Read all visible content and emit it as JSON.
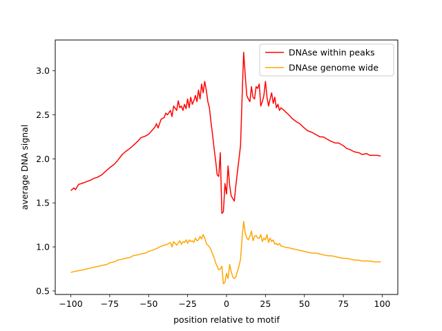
{
  "chart_data": {
    "type": "line",
    "title": "",
    "xlabel": "position relative to motif",
    "ylabel": "average DNA signal",
    "xlim": [
      -110,
      110
    ],
    "ylim": [
      0.46,
      3.35
    ],
    "xticks": [
      -100,
      -75,
      -50,
      -25,
      0,
      25,
      50,
      75,
      100
    ],
    "xtick_labels": [
      "−100",
      "−75",
      "−50",
      "−25",
      "0",
      "25",
      "50",
      "75",
      "100"
    ],
    "yticks": [
      0.5,
      1.0,
      1.5,
      2.0,
      2.5,
      3.0
    ],
    "ytick_labels": [
      "0.5",
      "1.0",
      "1.5",
      "2.0",
      "2.5",
      "3.0"
    ],
    "grid": false,
    "legend": {
      "position": "top-right"
    },
    "series": [
      {
        "name": "DNAse within peaks",
        "color": "#ff0000",
        "x": [
          -100,
          -98,
          -97,
          -95,
          -93,
          -90,
          -87,
          -85,
          -83,
          -80,
          -77,
          -75,
          -72,
          -70,
          -67,
          -65,
          -62,
          -60,
          -57,
          -55,
          -52,
          -50,
          -48,
          -46,
          -45,
          -44,
          -42,
          -40,
          -39,
          -38,
          -36,
          -35,
          -34,
          -32,
          -31,
          -30,
          -29,
          -28,
          -27,
          -26,
          -25,
          -24,
          -23,
          -22,
          -21,
          -20,
          -19,
          -18,
          -17,
          -16,
          -15,
          -14,
          -13,
          -12,
          -11,
          -10,
          -9,
          -8,
          -7,
          -6,
          -5,
          -4,
          -3,
          -2,
          -1,
          0,
          1,
          2,
          3,
          4,
          5,
          6,
          7,
          8,
          9,
          10,
          11,
          12,
          13,
          14,
          15,
          16,
          17,
          18,
          19,
          20,
          21,
          22,
          23,
          24,
          25,
          26,
          27,
          28,
          29,
          30,
          31,
          32,
          33,
          34,
          35,
          37,
          40,
          42,
          45,
          47,
          50,
          52,
          55,
          57,
          60,
          62,
          65,
          67,
          70,
          72,
          75,
          77,
          80,
          82,
          85,
          87,
          90,
          92,
          95,
          97,
          99
        ],
        "values": [
          1.64,
          1.67,
          1.65,
          1.71,
          1.72,
          1.74,
          1.76,
          1.78,
          1.79,
          1.82,
          1.87,
          1.9,
          1.94,
          1.98,
          2.05,
          2.08,
          2.12,
          2.15,
          2.2,
          2.24,
          2.26,
          2.28,
          2.32,
          2.36,
          2.4,
          2.35,
          2.45,
          2.47,
          2.52,
          2.5,
          2.55,
          2.48,
          2.6,
          2.55,
          2.66,
          2.58,
          2.6,
          2.55,
          2.62,
          2.57,
          2.68,
          2.58,
          2.7,
          2.62,
          2.66,
          2.72,
          2.65,
          2.78,
          2.68,
          2.85,
          2.75,
          2.88,
          2.78,
          2.65,
          2.58,
          2.42,
          2.28,
          2.12,
          1.98,
          1.82,
          1.8,
          2.07,
          1.38,
          1.4,
          1.72,
          1.6,
          1.92,
          1.7,
          1.58,
          1.55,
          1.52,
          1.7,
          1.85,
          2.0,
          2.15,
          2.7,
          3.21,
          2.95,
          2.72,
          2.68,
          2.65,
          2.82,
          2.7,
          2.68,
          2.82,
          2.8,
          2.85,
          2.6,
          2.65,
          2.72,
          2.88,
          2.7,
          2.6,
          2.68,
          2.75,
          2.63,
          2.7,
          2.58,
          2.62,
          2.55,
          2.58,
          2.55,
          2.5,
          2.46,
          2.42,
          2.4,
          2.35,
          2.32,
          2.3,
          2.28,
          2.25,
          2.25,
          2.22,
          2.2,
          2.18,
          2.18,
          2.15,
          2.12,
          2.1,
          2.08,
          2.07,
          2.05,
          2.06,
          2.04,
          2.04,
          2.04,
          2.03
        ]
      },
      {
        "name": "DNAse genome wide",
        "color": "#ffa500",
        "x": [
          -100,
          -98,
          -95,
          -92,
          -90,
          -87,
          -85,
          -82,
          -80,
          -77,
          -75,
          -72,
          -70,
          -67,
          -65,
          -62,
          -60,
          -57,
          -55,
          -52,
          -50,
          -48,
          -45,
          -43,
          -40,
          -38,
          -36,
          -35,
          -34,
          -32,
          -30,
          -29,
          -28,
          -27,
          -26,
          -25,
          -24,
          -23,
          -22,
          -21,
          -20,
          -19,
          -18,
          -17,
          -16,
          -15,
          -14,
          -13,
          -12,
          -11,
          -10,
          -9,
          -8,
          -7,
          -6,
          -5,
          -4,
          -3,
          -2,
          -1,
          0,
          1,
          2,
          3,
          4,
          5,
          6,
          7,
          8,
          9,
          10,
          11,
          12,
          13,
          14,
          15,
          16,
          17,
          18,
          19,
          20,
          21,
          22,
          23,
          24,
          25,
          26,
          27,
          28,
          29,
          30,
          31,
          32,
          33,
          34,
          35,
          37,
          40,
          42,
          45,
          47,
          50,
          52,
          55,
          57,
          60,
          62,
          65,
          67,
          70,
          72,
          75,
          77,
          80,
          82,
          85,
          87,
          90,
          92,
          95,
          97,
          99
        ],
        "values": [
          0.71,
          0.72,
          0.73,
          0.74,
          0.75,
          0.76,
          0.77,
          0.78,
          0.79,
          0.8,
          0.82,
          0.83,
          0.85,
          0.86,
          0.87,
          0.88,
          0.9,
          0.91,
          0.92,
          0.93,
          0.95,
          0.96,
          0.98,
          1.0,
          1.02,
          1.03,
          1.05,
          1.0,
          1.06,
          1.02,
          1.07,
          1.03,
          1.06,
          1.05,
          1.08,
          1.04,
          1.08,
          1.06,
          1.07,
          1.05,
          1.1,
          1.07,
          1.08,
          1.12,
          1.09,
          1.14,
          1.1,
          1.04,
          1.02,
          1.0,
          0.97,
          0.92,
          0.88,
          0.82,
          0.78,
          0.74,
          0.75,
          0.78,
          0.58,
          0.6,
          0.7,
          0.64,
          0.8,
          0.72,
          0.66,
          0.64,
          0.66,
          0.72,
          0.78,
          0.86,
          1.1,
          1.29,
          1.16,
          1.1,
          1.08,
          1.12,
          1.18,
          1.07,
          1.12,
          1.13,
          1.1,
          1.1,
          1.14,
          1.06,
          1.1,
          1.08,
          1.14,
          1.05,
          1.1,
          1.06,
          1.08,
          1.03,
          1.04,
          1.02,
          1.04,
          1.01,
          1.0,
          0.99,
          0.98,
          0.97,
          0.96,
          0.95,
          0.94,
          0.93,
          0.93,
          0.92,
          0.91,
          0.9,
          0.9,
          0.89,
          0.88,
          0.87,
          0.87,
          0.86,
          0.85,
          0.85,
          0.84,
          0.84,
          0.84,
          0.83,
          0.83,
          0.83
        ]
      }
    ]
  }
}
